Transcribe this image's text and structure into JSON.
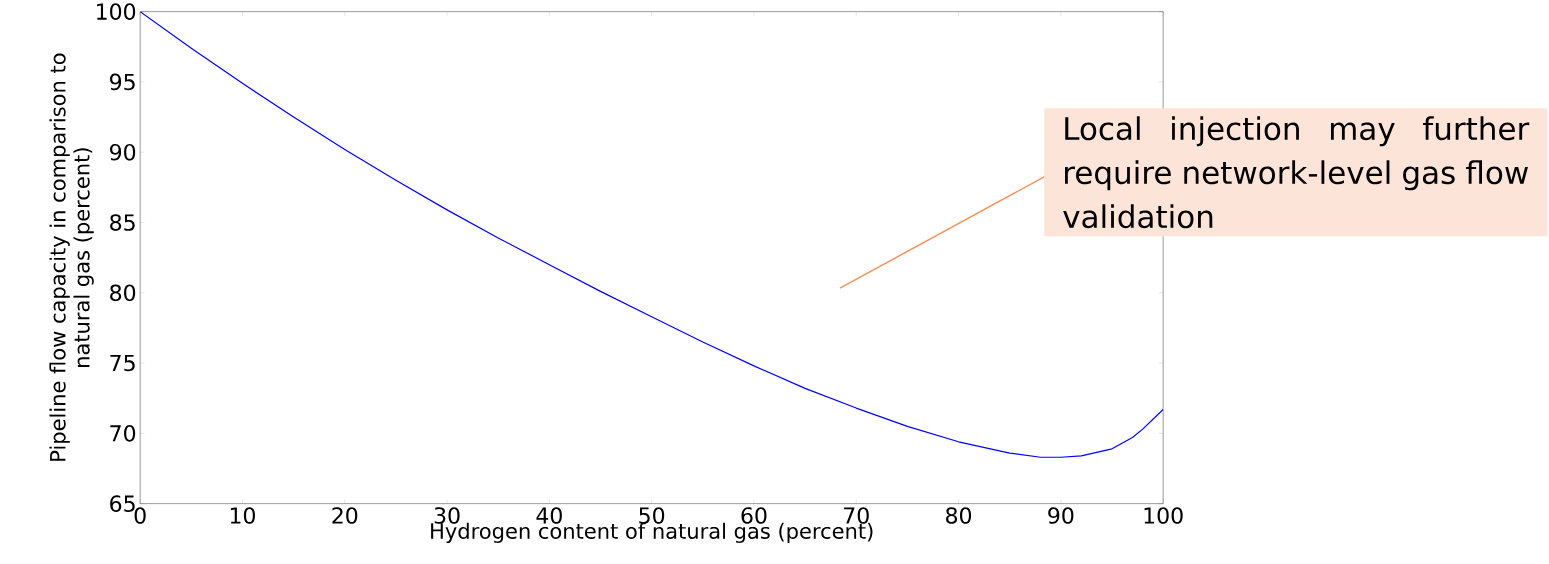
{
  "chart_data": {
    "type": "line",
    "xlabel": "Hydrogen content of natural gas (percent)",
    "ylabel": "Pipeline flow capacity in comparison to natural gas (percent)",
    "x": [
      0,
      5,
      10,
      15,
      20,
      25,
      30,
      35,
      40,
      45,
      50,
      55,
      60,
      65,
      70,
      75,
      80,
      85,
      88,
      90,
      92,
      95,
      97,
      98,
      100
    ],
    "series": [
      {
        "color": "#0000ff",
        "values": [
          100,
          97.4,
          94.9,
          92.5,
          90.2,
          88.0,
          85.9,
          83.9,
          82.0,
          80.1,
          78.3,
          76.5,
          74.8,
          73.2,
          71.8,
          70.5,
          69.4,
          68.6,
          68.3,
          68.3,
          68.4,
          68.9,
          69.7,
          70.3,
          71.7
        ]
      }
    ],
    "xlim": [
      0,
      100
    ],
    "ylim": [
      65,
      100
    ],
    "xticks": [
      0,
      10,
      20,
      30,
      40,
      50,
      60,
      70,
      80,
      90,
      100
    ],
    "yticks": [
      65,
      70,
      75,
      80,
      85,
      90,
      95,
      100
    ],
    "grid": false,
    "marker": "none",
    "line_style": "solid",
    "annotations": [
      "Local injection may further require network-level gas flow validation"
    ]
  }
}
